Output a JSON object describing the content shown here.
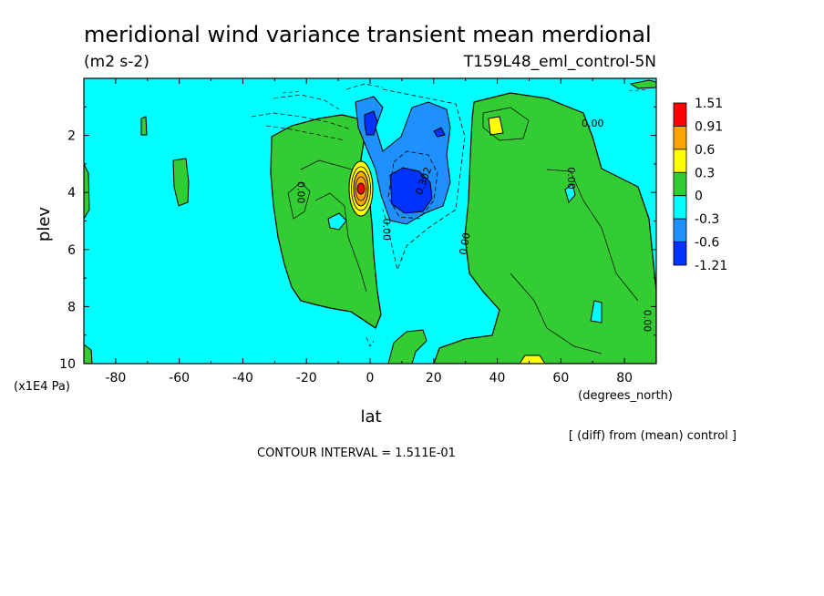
{
  "chart_data": {
    "type": "heatmap",
    "title": "meridional wind variance transient mean merdional",
    "units": "(m2 s-2)",
    "experiment": "T159L48_eml_control-5N",
    "xlabel": "lat",
    "x_units": "(degrees_north)",
    "ylabel": "plev",
    "y_units": "(x1E4 Pa)",
    "xlim": [
      -90,
      90
    ],
    "ylim": [
      0,
      10
    ],
    "x_ticks": [
      -80,
      -60,
      -40,
      -20,
      0,
      20,
      40,
      60,
      80
    ],
    "y_ticks": [
      2,
      4,
      6,
      8,
      10
    ],
    "y_inverted": true,
    "contour_interval_text": "CONTOUR INTERVAL = 1.511E-01",
    "diff_note": "[ (diff) from (mean) control ]",
    "colorbar": {
      "labels": [
        "1.51",
        "0.91",
        "0.6",
        "0.3",
        "0",
        "-0.3",
        "-0.6",
        "-1.21"
      ],
      "colors": [
        "#ff0000",
        "#ffa500",
        "#ffff00",
        "#33cc33",
        "#00ffff",
        "#1e90ff",
        "#0033ff"
      ]
    },
    "contour_labels": [
      {
        "text": "0.00",
        "lon": 70,
        "plev": 1.6,
        "rotate": 0
      },
      {
        "text": "0.00",
        "lon": 63,
        "plev": 3.5,
        "rotate": 90
      },
      {
        "text": "0.00",
        "lon": -22,
        "plev": 4.0,
        "rotate": 90
      },
      {
        "text": "0.00",
        "lon": 5,
        "plev": 5.3,
        "rotate": 90
      },
      {
        "text": "0.00",
        "lon": 30,
        "plev": 5.8,
        "rotate": -80
      },
      {
        "text": "0.302",
        "lon": 17,
        "plev": 3.6,
        "rotate": -70
      },
      {
        "text": "0.00",
        "lon": 87,
        "plev": 8.5,
        "rotate": 90
      }
    ]
  }
}
